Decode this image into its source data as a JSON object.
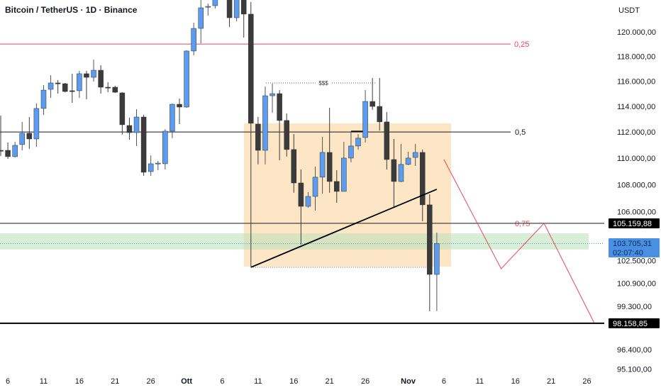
{
  "header": {
    "title": "Bitcoin / TetherUS · 1D · Binance",
    "currency": "USDT"
  },
  "price_badges": {
    "level_1": "105.159,88",
    "current_price": "103.705,31",
    "countdown": "02:07:40",
    "level_2": "98.158,85"
  },
  "colors": {
    "up": "#5b9cf0",
    "down": "#3b3b3b",
    "fib_red": "#e8455a",
    "box": "#fbdcae",
    "zone": "#bfe3bd",
    "current": "#4a90e2"
  },
  "chart_data": {
    "type": "candlestick",
    "scale": "log",
    "ylim": [
      95000,
      122700
    ],
    "y_ticks": [
      {
        "value": 120000,
        "label": "120.000,00"
      },
      {
        "value": 118000,
        "label": "118.000,00"
      },
      {
        "value": 116000,
        "label": "116.000,00"
      },
      {
        "value": 114000,
        "label": "114.000,00"
      },
      {
        "value": 112000,
        "label": "112.000,00"
      },
      {
        "value": 110000,
        "label": "110.000,00"
      },
      {
        "value": 108000,
        "label": "108.000,00"
      },
      {
        "value": 106000,
        "label": "106.000,00"
      },
      {
        "value": 102500,
        "label": "102.500,00"
      },
      {
        "value": 100900,
        "label": "100.900,00"
      },
      {
        "value": 99300,
        "label": "99.300,00"
      },
      {
        "value": 96400,
        "label": "96.400,00"
      },
      {
        "value": 95100,
        "label": "95.100,00"
      }
    ],
    "x_ticks": [
      {
        "date": "Sep 6",
        "label": "6"
      },
      {
        "date": "Sep 11",
        "label": "11"
      },
      {
        "date": "Sep 16",
        "label": "16"
      },
      {
        "date": "Sep 21",
        "label": "21"
      },
      {
        "date": "Sep 26",
        "label": "26"
      },
      {
        "date": "Oct 1",
        "label": "Ott"
      },
      {
        "date": "Oct 6",
        "label": "6"
      },
      {
        "date": "Oct 11",
        "label": "11"
      },
      {
        "date": "Oct 16",
        "label": "16"
      },
      {
        "date": "Oct 21",
        "label": "21"
      },
      {
        "date": "Oct 26",
        "label": "26"
      },
      {
        "date": "Nov 1",
        "label": "Nov"
      },
      {
        "date": "Nov 6",
        "label": "6"
      },
      {
        "date": "Nov 11",
        "label": "11"
      },
      {
        "date": "Nov 16",
        "label": "16"
      },
      {
        "date": "Nov 21",
        "label": "21"
      },
      {
        "date": "Nov 26",
        "label": "26"
      }
    ],
    "candles": [
      [
        "Sep 5",
        110590,
        113270,
        110160,
        110540
      ],
      [
        "Sep 6",
        110590,
        111190,
        109940,
        110110
      ],
      [
        "Sep 7",
        110110,
        111240,
        110050,
        110970
      ],
      [
        "Sep 8",
        111030,
        112780,
        110590,
        111900
      ],
      [
        "Sep 9",
        111900,
        113160,
        110700,
        111460
      ],
      [
        "Sep 10",
        111460,
        114220,
        110860,
        113830
      ],
      [
        "Sep 11",
        113830,
        115680,
        113330,
        115280
      ],
      [
        "Sep 12",
        115340,
        116470,
        114660,
        115850
      ],
      [
        "Sep 13",
        115850,
        116080,
        115000,
        115790
      ],
      [
        "Sep 14",
        115790,
        115850,
        115110,
        115170
      ],
      [
        "Sep 15",
        115230,
        116590,
        114270,
        115170
      ],
      [
        "Sep 16",
        115230,
        116815,
        114660,
        116590
      ],
      [
        "Sep 17",
        116590,
        116815,
        114550,
        116300
      ],
      [
        "Sep 18",
        116300,
        117730,
        115960,
        116870
      ],
      [
        "Sep 19",
        116870,
        117270,
        115000,
        115510
      ],
      [
        "Sep 20",
        115510,
        115910,
        115110,
        115450
      ],
      [
        "Sep 21",
        115510,
        115620,
        115060,
        115110
      ],
      [
        "Sep 22",
        115060,
        115110,
        111790,
        112560
      ],
      [
        "Sep 23",
        112500,
        113110,
        111410,
        111950
      ],
      [
        "Sep 24",
        111950,
        113770,
        110920,
        113160
      ],
      [
        "Sep 25",
        113160,
        113330,
        108660,
        108930
      ],
      [
        "Sep 26",
        108980,
        110210,
        108660,
        109570
      ],
      [
        "Sep 27",
        109570,
        109780,
        109090,
        109620
      ],
      [
        "Sep 28",
        109570,
        112220,
        109140,
        112060
      ],
      [
        "Sep 29",
        112060,
        114220,
        111520,
        114160
      ],
      [
        "Sep 30",
        114160,
        114610,
        112610,
        113940
      ],
      [
        "Oct 1",
        113940,
        118480,
        113880,
        118430
      ],
      [
        "Oct 2",
        118430,
        120760,
        118080,
        120290
      ],
      [
        "Oct 3",
        120290,
        122800,
        119060,
        122010
      ],
      [
        "Oct 4",
        122070,
        122370,
        121360,
        122130
      ],
      [
        "Oct 5",
        122190,
        125000,
        121950,
        123300
      ],
      [
        "Oct 7",
        124700,
        125100,
        120410,
        121180
      ],
      [
        "Oct 8",
        121180,
        123900,
        120880,
        123400
      ],
      [
        "Oct 9",
        123400,
        123700,
        119530,
        121480
      ],
      [
        "Oct 10",
        121480,
        122500,
        102020,
        112670
      ],
      [
        "Oct 11",
        112610,
        113160,
        109520,
        110590
      ],
      [
        "Oct 12",
        110590,
        115570,
        109520,
        114830
      ],
      [
        "Oct 13",
        114830,
        115790,
        113490,
        115000
      ],
      [
        "Oct 14",
        115000,
        115280,
        109840,
        112890
      ],
      [
        "Oct 15",
        112890,
        113440,
        110110,
        110650
      ],
      [
        "Oct 16",
        110650,
        111840,
        107400,
        108130
      ],
      [
        "Oct 17",
        108130,
        109140,
        103630,
        106400
      ],
      [
        "Oct 18",
        106400,
        107450,
        106300,
        107130
      ],
      [
        "Oct 19",
        107130,
        109360,
        106090,
        108560
      ],
      [
        "Oct 20",
        108560,
        111630,
        107340,
        110430
      ],
      [
        "Oct 21",
        110430,
        113880,
        107400,
        108240
      ],
      [
        "Oct 22",
        108240,
        109090,
        106660,
        107500
      ],
      [
        "Oct 23",
        107500,
        111240,
        107500,
        110000
      ],
      [
        "Oct 24",
        110000,
        112000,
        109680,
        110920
      ],
      [
        "Oct 25",
        110920,
        111840,
        110650,
        111520
      ],
      [
        "Oct 26",
        111570,
        115280,
        111190,
        114380
      ],
      [
        "Oct 27",
        114380,
        116245,
        113720,
        113990
      ],
      [
        "Oct 28",
        113990,
        116245,
        112110,
        112780
      ],
      [
        "Oct 29",
        112780,
        113550,
        109140,
        109890
      ],
      [
        "Oct 30",
        109890,
        111460,
        106300,
        108240
      ],
      [
        "Oct 31",
        108240,
        111080,
        108190,
        109520
      ],
      [
        "Nov 1",
        109520,
        110480,
        109460,
        110000
      ],
      [
        "Nov 2",
        110050,
        111080,
        109410,
        110430
      ],
      [
        "Nov 3",
        110430,
        110650,
        105310,
        106510
      ],
      [
        "Nov 4",
        106510,
        107290,
        98980,
        101520
      ],
      [
        "Nov 5",
        101520,
        104490,
        98980,
        103705.31
      ]
    ],
    "fib_levels": [
      {
        "label": "0,25",
        "value": 119000,
        "color": "#e8455a"
      },
      {
        "label": "0,5",
        "value": 112000,
        "color": "#131722"
      },
      {
        "label": "0,75",
        "value": 105159.88,
        "color": "#e8455a"
      }
    ],
    "horizontal_lines": [
      105159.88,
      98158.85
    ],
    "current_price": 103705.31,
    "range_box": {
      "from": "Oct 10",
      "to": "Nov 7",
      "top": 112670,
      "bottom": 102070
    },
    "demand_zone": {
      "top": 104440,
      "bottom": 103280
    },
    "liquidity_line": {
      "from": "Oct 12",
      "to": "Oct 27",
      "value": 115850,
      "label": "$$$"
    },
    "range_low_line": {
      "from": "Oct 10",
      "to": "Nov 4",
      "value": 102020
    },
    "trendline": [
      {
        "date": "Oct 10",
        "value": 102020
      },
      {
        "date": "Nov 5",
        "value": 107660
      }
    ],
    "breakout_mark": {
      "from": "Oct 24",
      "to": "Oct 26",
      "value": 112000
    },
    "projection_path": [
      {
        "date": "Nov 6",
        "value": 109890
      },
      {
        "date": "Nov 14",
        "value": 101920
      },
      {
        "date": "Nov 20",
        "value": 105160
      },
      {
        "date": "Nov 27",
        "value": 98200
      }
    ]
  }
}
